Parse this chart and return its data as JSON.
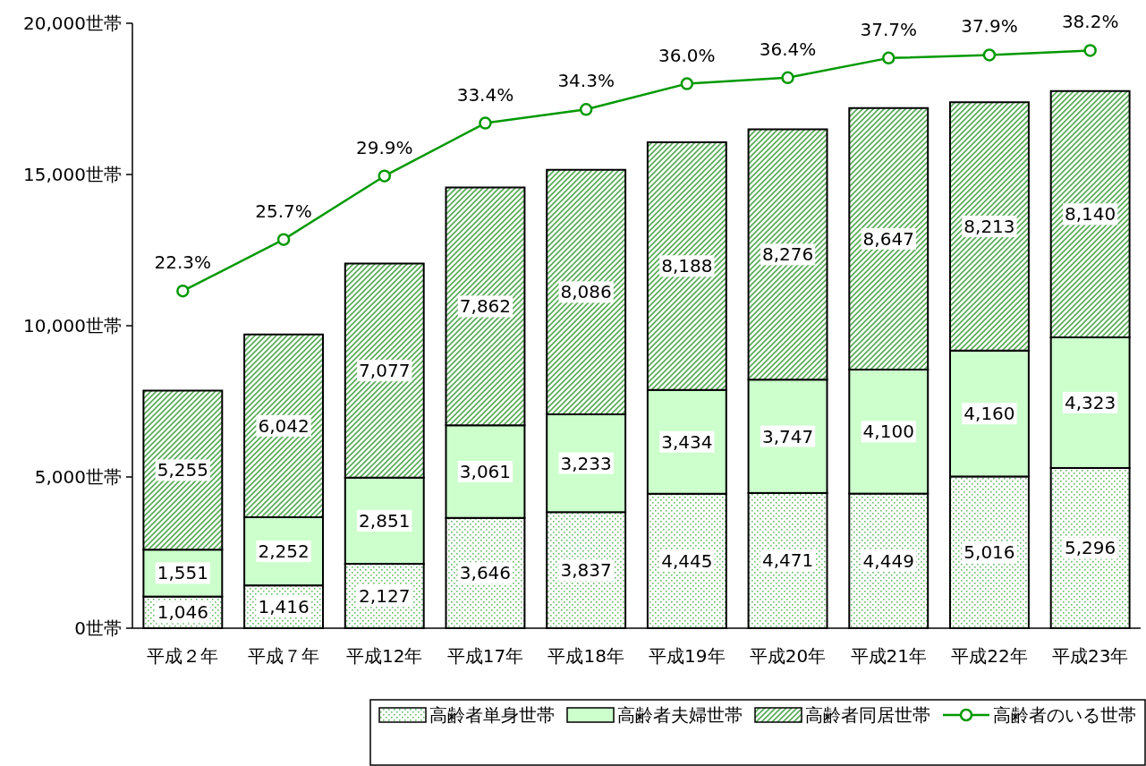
{
  "chart_data": {
    "type": "bar",
    "stacked": true,
    "categories": [
      "平成２年",
      "平成７年",
      "平成12年",
      "平成17年",
      "平成18年",
      "平成19年",
      "平成20年",
      "平成21年",
      "平成22年",
      "平成23年"
    ],
    "ylim": [
      0,
      20000
    ],
    "yticks": [
      {
        "value": 0,
        "label": "0世帯"
      },
      {
        "value": 5000,
        "label": "5,000世帯"
      },
      {
        "value": 10000,
        "label": "10,000世帯"
      },
      {
        "value": 15000,
        "label": "15,000世帯"
      },
      {
        "value": 20000,
        "label": "20,000世帯"
      }
    ],
    "y2lim": [
      0,
      40
    ],
    "marker": "circle",
    "legend": "bottom",
    "grid": false,
    "series": [
      {
        "name": "高齢者単身世帯",
        "color": "#66bb66",
        "values": [
          1046,
          1416,
          2127,
          3646,
          3837,
          4445,
          4471,
          4449,
          5016,
          5296
        ],
        "value_labels": [
          "1,046",
          "1,416",
          "2,127",
          "3,646",
          "3,837",
          "4,445",
          "4,471",
          "4,449",
          "5,016",
          "5,296"
        ]
      },
      {
        "name": "高齢者夫婦世帯",
        "color": "#ccffcc",
        "values": [
          1551,
          2252,
          2851,
          3061,
          3233,
          3434,
          3747,
          4100,
          4160,
          4323
        ],
        "value_labels": [
          "1,551",
          "2,252",
          "2,851",
          "3,061",
          "3,233",
          "3,434",
          "3,747",
          "4,100",
          "4,160",
          "4,323"
        ]
      },
      {
        "name": "高齢者同居世帯",
        "color": "#55aa55",
        "values": [
          5255,
          6042,
          7077,
          7862,
          8086,
          8188,
          8276,
          8647,
          8213,
          8140
        ],
        "value_labels": [
          "5,255",
          "6,042",
          "7,077",
          "7,862",
          "8,086",
          "8,188",
          "8,276",
          "8,647",
          "8,213",
          "8,140"
        ]
      },
      {
        "name": "高齢者のいる世帯",
        "type": "line",
        "axis": "y2",
        "color": "#009900",
        "values": [
          22.3,
          25.7,
          29.9,
          33.4,
          34.3,
          36.0,
          36.4,
          37.7,
          37.9,
          38.2
        ],
        "value_labels": [
          "22.3%",
          "25.7%",
          "29.9%",
          "33.4%",
          "34.3%",
          "36.0%",
          "36.4%",
          "37.7%",
          "37.9%",
          "38.2%"
        ]
      }
    ]
  }
}
